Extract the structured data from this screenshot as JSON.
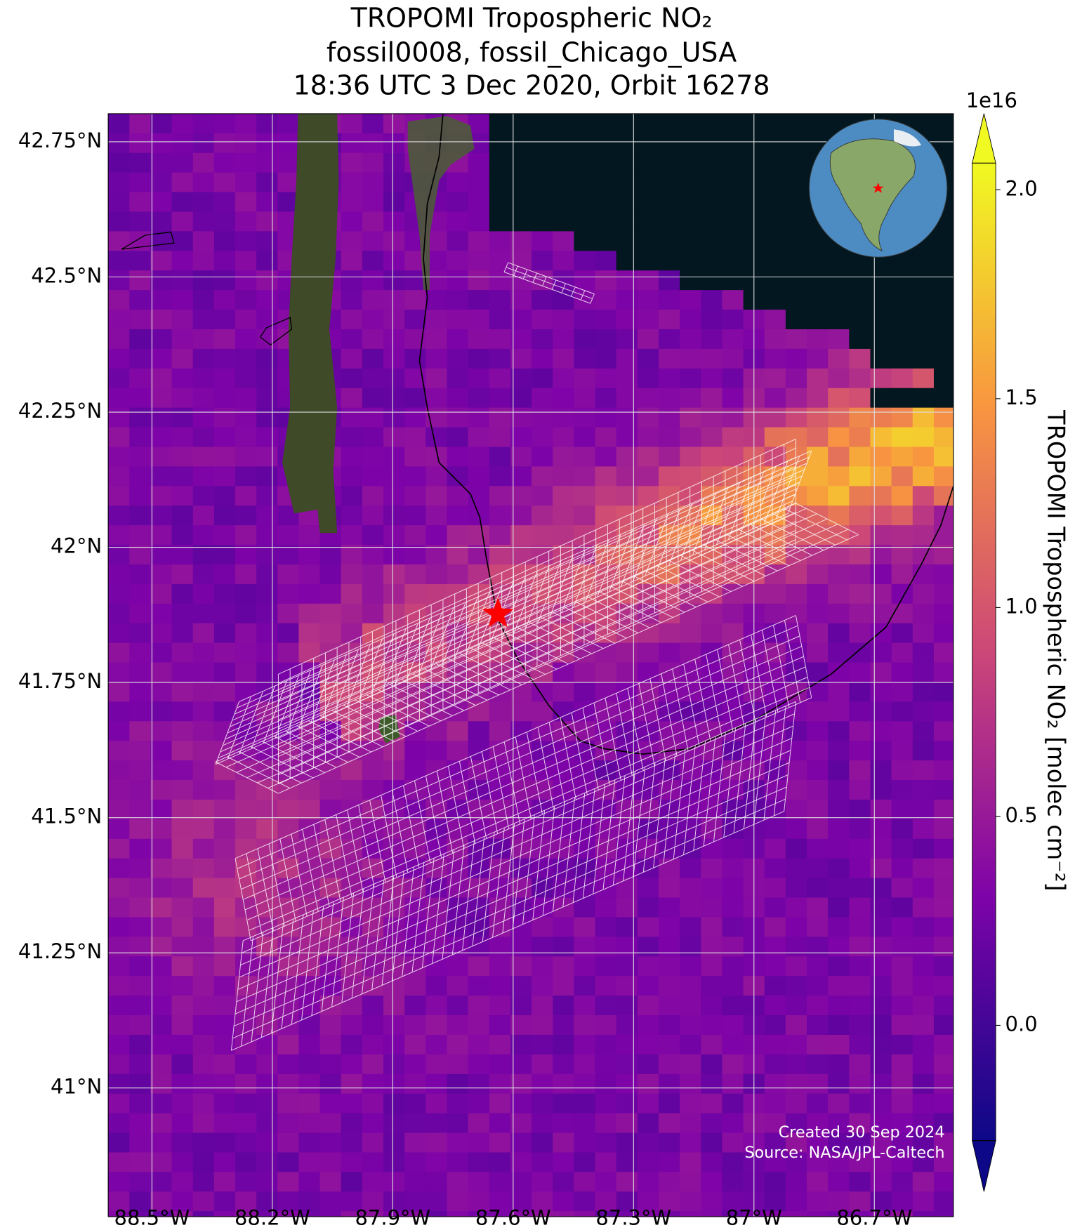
{
  "chart_data": {
    "type": "map",
    "title": "TROPOMI Tropospheric NO₂",
    "subtitle": [
      "fossil0008, fossil_Chicago_USA",
      "18:36 UTC 3 Dec 2020, Orbit 16278"
    ],
    "xlim": [
      -88.609,
      -86.503
    ],
    "ylim": [
      40.762,
      42.802
    ],
    "xticks": [
      {
        "value": -88.5,
        "label": "88.5°W"
      },
      {
        "value": -88.2,
        "label": "88.2°W"
      },
      {
        "value": -87.9,
        "label": "87.9°W"
      },
      {
        "value": -87.6,
        "label": "87.6°W"
      },
      {
        "value": -87.3,
        "label": "87.3°W"
      },
      {
        "value": -87,
        "label": "87°W"
      },
      {
        "value": -86.7,
        "label": "86.7°W"
      }
    ],
    "yticks": [
      {
        "value": 41,
        "label": "41°N"
      },
      {
        "value": 41.25,
        "label": "41.25°N"
      },
      {
        "value": 41.5,
        "label": "41.5°N"
      },
      {
        "value": 41.75,
        "label": "41.75°N"
      },
      {
        "value": 42,
        "label": "42°N"
      },
      {
        "value": 42.25,
        "label": "42.25°N"
      },
      {
        "value": 42.5,
        "label": "42.5°N"
      },
      {
        "value": 42.75,
        "label": "42.75°N"
      }
    ],
    "grid": true,
    "colorbar": {
      "label": "TROPOMI Tropospheric NO₂ [molec cm⁻²]",
      "offset_label": "1e16",
      "colormap": "plasma",
      "lim": [
        -0.276,
        2.064
      ],
      "ticks": [
        {
          "value": 0,
          "label": "0.0"
        },
        {
          "value": 0.5,
          "label": "0.5"
        },
        {
          "value": 1,
          "label": "1.0"
        },
        {
          "value": 1.5,
          "label": "1.5"
        },
        {
          "value": 2,
          "label": "2.0"
        }
      ]
    },
    "annotations": [
      "Created 30 Sep 2024",
      "Source: NASA/JPL-Caltech"
    ]
  }
}
